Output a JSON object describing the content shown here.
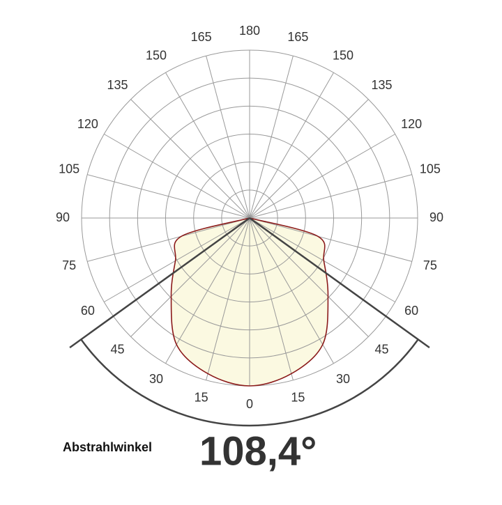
{
  "chart_data": {
    "type": "polar",
    "angle_ticks": [
      0,
      15,
      30,
      45,
      60,
      75,
      90,
      105,
      120,
      135,
      150,
      165,
      180
    ],
    "angles": [
      0,
      15,
      30,
      45,
      60,
      75,
      90
    ],
    "values": [
      100,
      96,
      87,
      66,
      51,
      42,
      0
    ],
    "rlim": [
      0,
      100
    ],
    "color": "#8b1a1a",
    "fill": "#fbf9e1",
    "beam": {
      "label": "Abstrahlwinkel",
      "value": 108.4,
      "value_label": "108,4°"
    }
  }
}
